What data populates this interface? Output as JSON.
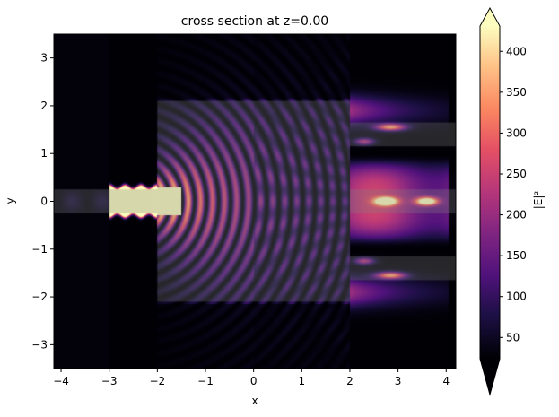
{
  "chart_data": {
    "type": "heatmap",
    "title": "cross section at z=0.00",
    "xlabel": "x",
    "ylabel": "y",
    "xlim": [
      -4.15,
      4.2
    ],
    "ylim": [
      -3.5,
      3.5
    ],
    "xticks": [
      -4,
      -3,
      -2,
      -1,
      0,
      1,
      2,
      3,
      4
    ],
    "yticks": [
      -3,
      -2,
      -1,
      0,
      1,
      2,
      3
    ],
    "colormap": "magma",
    "colorbar": {
      "label": "|E|²",
      "range": [
        24,
        431
      ],
      "ticks": [
        50,
        100,
        150,
        200,
        250,
        300,
        350,
        400
      ],
      "extend": "both"
    },
    "structure_overlays": [
      {
        "name": "input waveguide",
        "x": [
          -4.15,
          -2
        ],
        "y": [
          -0.25,
          0.25
        ]
      },
      {
        "name": "slab region",
        "x": [
          -2,
          2
        ],
        "y": [
          -2.1,
          2.1
        ]
      },
      {
        "name": "output waveguide top",
        "x": [
          2,
          4.2
        ],
        "y": [
          1.15,
          1.65
        ]
      },
      {
        "name": "output waveguide center",
        "x": [
          2,
          4.2
        ],
        "y": [
          -0.25,
          0.25
        ]
      },
      {
        "name": "output waveguide bottom",
        "x": [
          2,
          4.2
        ],
        "y": [
          -1.65,
          -1.15
        ]
      }
    ]
  }
}
